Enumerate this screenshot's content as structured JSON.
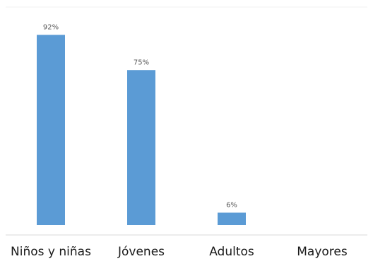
{
  "chart_data": {
    "type": "bar",
    "categories": [
      "Niños y niñas",
      "Jóvenes",
      "Adultos",
      "Mayores"
    ],
    "values": [
      92,
      75,
      6,
      null
    ],
    "data_labels": [
      "92%",
      "75%",
      "6%",
      ""
    ],
    "unit": "%",
    "title": "",
    "xlabel": "",
    "ylabel": "",
    "ylim": [
      0,
      100
    ],
    "grid": false,
    "legend": "none",
    "colors": {
      "bar": "#5b9bd5",
      "axis": "#d9d9d9",
      "top_rule": "#f2f2f2",
      "data_label": "#595959",
      "tick_label": "#1a1a1a"
    }
  }
}
